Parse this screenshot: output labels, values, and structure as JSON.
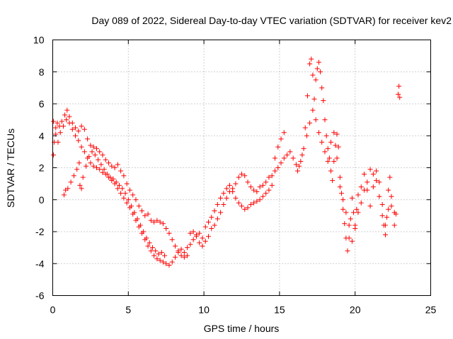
{
  "chart_data": {
    "type": "scatter",
    "title": "Day 089 of 2022, Sidereal Day-to-day VTEC variation (SDTVAR) for receiver kev2",
    "xlabel": "GPS time / hours",
    "ylabel": "SDTVAR / TECUs",
    "xlim": [
      0,
      25
    ],
    "ylim": [
      -6,
      10
    ],
    "xticks": [
      "0",
      "5",
      "10",
      "15",
      "20",
      "25"
    ],
    "yticks": [
      "-6",
      "-4",
      "-2",
      "0",
      "2",
      "4",
      "6",
      "8",
      "10"
    ],
    "grid": true,
    "marker": "+",
    "color": "#ff0000",
    "series": [
      {
        "name": "SDTVAR",
        "points": [
          [
            0.05,
            2.8
          ],
          [
            0.1,
            3.6
          ],
          [
            0.2,
            4.5
          ],
          [
            0.3,
            4.8
          ],
          [
            0.45,
            4.6
          ],
          [
            0.6,
            4.9
          ],
          [
            0.8,
            5.3
          ],
          [
            0.95,
            5.6
          ],
          [
            1.1,
            5.2
          ],
          [
            1.3,
            4.8
          ],
          [
            1.5,
            4.5
          ],
          [
            1.7,
            4.3
          ],
          [
            1.9,
            4.6
          ],
          [
            2.1,
            4.4
          ],
          [
            2.3,
            3.8
          ],
          [
            2.5,
            3.4
          ],
          [
            2.7,
            3.3
          ],
          [
            2.9,
            3.2
          ],
          [
            3.1,
            3.0
          ],
          [
            3.3,
            2.8
          ],
          [
            3.5,
            2.5
          ],
          [
            3.7,
            2.3
          ],
          [
            3.9,
            2.1
          ],
          [
            4.1,
            2.0
          ],
          [
            4.3,
            2.2
          ],
          [
            4.5,
            1.8
          ],
          [
            4.7,
            1.5
          ],
          [
            4.9,
            1.0
          ],
          [
            5.1,
            0.6
          ],
          [
            5.3,
            0.3
          ],
          [
            5.5,
            0.0
          ],
          [
            5.7,
            -0.4
          ],
          [
            5.9,
            -0.7
          ],
          [
            6.1,
            -1.0
          ],
          [
            6.3,
            -0.9
          ],
          [
            6.5,
            -1.3
          ],
          [
            6.7,
            -1.4
          ],
          [
            6.9,
            -1.3
          ],
          [
            7.1,
            -1.4
          ],
          [
            7.3,
            -1.5
          ],
          [
            7.5,
            -1.8
          ],
          [
            7.7,
            -2.1
          ],
          [
            7.9,
            -2.5
          ],
          [
            8.1,
            -2.9
          ],
          [
            8.3,
            -3.2
          ],
          [
            8.5,
            -3.1
          ],
          [
            8.7,
            -3.3
          ],
          [
            8.9,
            -3.0
          ],
          [
            9.1,
            -2.8
          ],
          [
            9.3,
            -2.5
          ],
          [
            9.5,
            -2.2
          ],
          [
            9.7,
            -2.1
          ],
          [
            9.9,
            -2.4
          ],
          [
            10.1,
            -2.6
          ],
          [
            10.3,
            -2.3
          ],
          [
            10.5,
            -1.8
          ],
          [
            10.7,
            -1.6
          ],
          [
            10.9,
            -1.2
          ],
          [
            11.1,
            -0.8
          ],
          [
            11.3,
            -0.3
          ],
          [
            11.5,
            0.1
          ],
          [
            11.7,
            0.5
          ],
          [
            11.9,
            0.7
          ],
          [
            12.1,
            1.0
          ],
          [
            12.3,
            1.4
          ],
          [
            12.5,
            1.6
          ],
          [
            12.7,
            1.5
          ],
          [
            12.9,
            1.1
          ],
          [
            13.1,
            0.8
          ],
          [
            13.3,
            0.6
          ],
          [
            13.5,
            0.5
          ],
          [
            13.7,
            0.8
          ],
          [
            13.9,
            0.9
          ],
          [
            14.1,
            1.1
          ],
          [
            14.3,
            1.4
          ],
          [
            14.5,
            1.5
          ],
          [
            14.7,
            1.8
          ],
          [
            14.9,
            2.0
          ],
          [
            15.1,
            2.3
          ],
          [
            15.3,
            2.6
          ],
          [
            15.5,
            2.8
          ],
          [
            15.7,
            3.0
          ],
          [
            15.9,
            2.6
          ],
          [
            16.1,
            2.2
          ],
          [
            16.3,
            2.1
          ],
          [
            16.5,
            2.8
          ],
          [
            16.7,
            4.5
          ],
          [
            16.85,
            6.5
          ],
          [
            17.0,
            8.5
          ],
          [
            17.1,
            8.8
          ],
          [
            17.2,
            7.8
          ],
          [
            17.3,
            6.3
          ],
          [
            17.4,
            7.5
          ],
          [
            17.5,
            8.2
          ],
          [
            17.6,
            8.6
          ],
          [
            17.7,
            8.0
          ],
          [
            17.8,
            7.0
          ],
          [
            17.9,
            6.2
          ],
          [
            18.0,
            5.0
          ],
          [
            18.1,
            4.0
          ],
          [
            18.2,
            3.2
          ],
          [
            18.3,
            2.6
          ],
          [
            18.4,
            1.8
          ],
          [
            18.5,
            1.2
          ],
          [
            18.6,
            2.4
          ],
          [
            18.7,
            3.4
          ],
          [
            18.8,
            4.1
          ],
          [
            18.9,
            3.3
          ],
          [
            19.0,
            1.4
          ],
          [
            19.1,
            0.4
          ],
          [
            19.2,
            -0.6
          ],
          [
            19.3,
            -1.5
          ],
          [
            19.4,
            -2.4
          ],
          [
            19.5,
            -3.2
          ],
          [
            19.6,
            -2.4
          ],
          [
            19.7,
            -1.2
          ],
          [
            19.8,
            0.1
          ],
          [
            19.9,
            -0.8
          ],
          [
            20.0,
            -1.6
          ],
          [
            20.1,
            -0.6
          ],
          [
            20.2,
            0.3
          ],
          [
            20.4,
            -0.2
          ],
          [
            20.6,
            0.6
          ],
          [
            20.8,
            1.1
          ],
          [
            21.0,
            1.9
          ],
          [
            21.2,
            1.6
          ],
          [
            21.4,
            1.8
          ],
          [
            21.6,
            1.1
          ],
          [
            21.8,
            -0.3
          ],
          [
            21.9,
            -1.6
          ],
          [
            22.0,
            -2.2
          ],
          [
            22.1,
            -1.1
          ],
          [
            22.2,
            0.6
          ],
          [
            22.3,
            1.4
          ],
          [
            22.4,
            -0.4
          ],
          [
            22.6,
            -1.6
          ],
          [
            22.7,
            -0.9
          ],
          [
            22.85,
            6.6
          ],
          [
            22.9,
            7.1
          ],
          [
            22.95,
            6.4
          ],
          [
            0.05,
            4.9
          ],
          [
            0.2,
            4.1
          ],
          [
            0.35,
            3.6
          ],
          [
            0.5,
            4.2
          ],
          [
            0.7,
            4.6
          ],
          [
            0.9,
            5.0
          ],
          [
            1.1,
            4.8
          ],
          [
            1.3,
            4.4
          ],
          [
            1.5,
            4.0
          ],
          [
            1.7,
            3.7
          ],
          [
            1.9,
            3.3
          ],
          [
            2.1,
            3.0
          ],
          [
            2.3,
            2.6
          ],
          [
            2.5,
            2.3
          ],
          [
            2.7,
            2.1
          ],
          [
            2.9,
            2.0
          ],
          [
            3.1,
            1.9
          ],
          [
            3.3,
            1.7
          ],
          [
            3.5,
            1.6
          ],
          [
            3.7,
            1.4
          ],
          [
            3.9,
            1.2
          ],
          [
            4.1,
            1.0
          ],
          [
            4.3,
            0.7
          ],
          [
            4.5,
            0.4
          ],
          [
            4.7,
            0.1
          ],
          [
            4.9,
            -0.2
          ],
          [
            5.1,
            -0.5
          ],
          [
            5.3,
            -0.9
          ],
          [
            5.5,
            -1.3
          ],
          [
            5.7,
            -1.7
          ],
          [
            5.9,
            -2.1
          ],
          [
            6.1,
            -2.5
          ],
          [
            6.3,
            -2.9
          ],
          [
            6.5,
            -3.2
          ],
          [
            6.7,
            -3.5
          ],
          [
            6.9,
            -3.7
          ],
          [
            7.1,
            -3.8
          ],
          [
            7.3,
            -3.9
          ],
          [
            7.5,
            -4.0
          ],
          [
            7.7,
            -4.1
          ],
          [
            7.9,
            -3.9
          ],
          [
            8.1,
            -3.6
          ],
          [
            8.3,
            -3.3
          ],
          [
            8.5,
            -3.5
          ],
          [
            8.7,
            -3.6
          ],
          [
            8.9,
            -3.5
          ],
          [
            9.1,
            -2.1
          ],
          [
            9.3,
            -2.0
          ],
          [
            9.5,
            -2.3
          ],
          [
            9.7,
            -2.7
          ],
          [
            9.9,
            -2.9
          ],
          [
            10.1,
            -1.7
          ],
          [
            10.3,
            -1.4
          ],
          [
            10.5,
            -1.1
          ],
          [
            10.7,
            -0.7
          ],
          [
            10.9,
            -0.3
          ],
          [
            11.1,
            0.1
          ],
          [
            11.3,
            0.4
          ],
          [
            11.5,
            0.7
          ],
          [
            11.7,
            0.9
          ],
          [
            11.9,
            0.5
          ],
          [
            12.1,
            0.1
          ],
          [
            12.3,
            -0.2
          ],
          [
            12.5,
            -0.4
          ],
          [
            12.7,
            -0.6
          ],
          [
            12.9,
            -0.5
          ],
          [
            13.1,
            -0.3
          ],
          [
            13.3,
            -0.2
          ],
          [
            13.5,
            -0.1
          ],
          [
            13.7,
            0.0
          ],
          [
            13.9,
            0.2
          ],
          [
            14.1,
            0.4
          ],
          [
            14.3,
            0.6
          ],
          [
            14.5,
            0.9
          ],
          [
            14.7,
            2.6
          ],
          [
            14.9,
            3.3
          ],
          [
            15.1,
            3.8
          ],
          [
            15.3,
            4.2
          ],
          [
            0.75,
            0.3
          ],
          [
            0.85,
            0.6
          ],
          [
            1.0,
            0.7
          ],
          [
            1.2,
            1.1
          ],
          [
            1.4,
            1.5
          ],
          [
            1.6,
            1.9
          ],
          [
            1.75,
            2.3
          ],
          [
            1.8,
            0.9
          ],
          [
            1.9,
            0.7
          ],
          [
            2.0,
            1.4
          ],
          [
            2.2,
            2.1
          ],
          [
            2.4,
            2.7
          ],
          [
            2.6,
            3.0
          ],
          [
            2.8,
            2.8
          ],
          [
            3.0,
            2.5
          ],
          [
            3.2,
            2.2
          ],
          [
            3.4,
            1.9
          ],
          [
            3.6,
            1.6
          ],
          [
            3.8,
            1.4
          ],
          [
            4.0,
            1.3
          ],
          [
            4.2,
            1.1
          ],
          [
            4.4,
            0.9
          ],
          [
            4.6,
            0.7
          ],
          [
            4.8,
            0.4
          ],
          [
            5.0,
            0.0
          ],
          [
            5.2,
            -0.4
          ],
          [
            5.4,
            -0.8
          ],
          [
            5.6,
            -1.2
          ],
          [
            5.8,
            -1.6
          ],
          [
            6.0,
            -2.0
          ],
          [
            6.2,
            -2.4
          ],
          [
            6.4,
            -2.7
          ],
          [
            6.6,
            -3.0
          ],
          [
            6.8,
            -3.2
          ],
          [
            7.0,
            -3.4
          ],
          [
            7.2,
            -3.3
          ],
          [
            7.4,
            -3.5
          ],
          [
            16.2,
            1.8
          ],
          [
            16.4,
            2.4
          ],
          [
            16.6,
            3.2
          ],
          [
            16.8,
            4.0
          ],
          [
            17.0,
            4.8
          ],
          [
            17.2,
            5.6
          ],
          [
            17.4,
            5.0
          ],
          [
            17.6,
            4.2
          ],
          [
            17.8,
            3.6
          ],
          [
            18.0,
            3.0
          ],
          [
            18.2,
            2.4
          ],
          [
            18.4,
            3.6
          ],
          [
            18.6,
            4.2
          ],
          [
            18.8,
            2.6
          ],
          [
            19.0,
            0.8
          ],
          [
            19.2,
            0.0
          ],
          [
            19.4,
            -0.8
          ],
          [
            19.6,
            -1.6
          ],
          [
            19.8,
            -2.6
          ],
          [
            20.0,
            -1.8
          ],
          [
            20.2,
            -0.8
          ],
          [
            20.4,
            0.8
          ],
          [
            20.6,
            1.6
          ],
          [
            20.8,
            0.6
          ],
          [
            21.0,
            -0.4
          ],
          [
            21.2,
            0.8
          ],
          [
            21.4,
            1.2
          ],
          [
            21.6,
            0.2
          ],
          [
            21.8,
            -1.0
          ],
          [
            22.0,
            -1.6
          ],
          [
            22.2,
            -0.6
          ],
          [
            22.4,
            0.2
          ],
          [
            22.6,
            -0.8
          ]
        ]
      }
    ]
  }
}
